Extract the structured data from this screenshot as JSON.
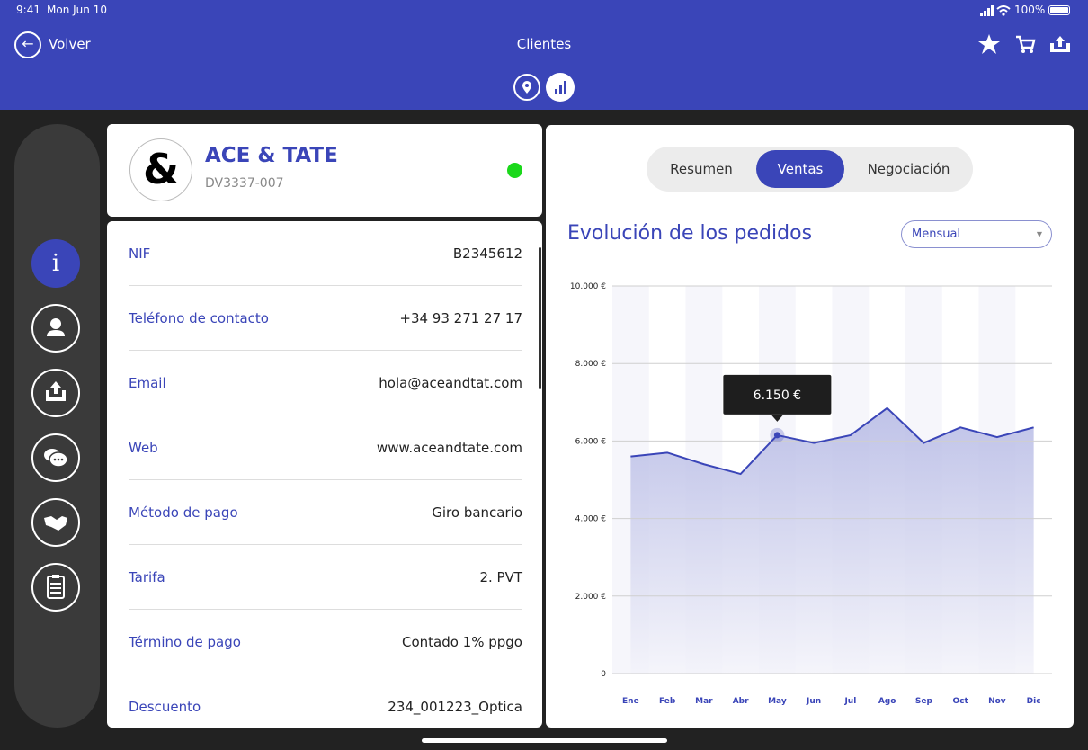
{
  "status": {
    "time": "9:41",
    "date": "Mon Jun 10",
    "battery": "100%"
  },
  "nav": {
    "back": "Volver",
    "title": "Clientes"
  },
  "client": {
    "logo": "&",
    "name": "ACE & TATE",
    "code": "DV3337-007"
  },
  "info": [
    {
      "label": "NIF",
      "value": "B2345612"
    },
    {
      "label": "Teléfono de contacto",
      "value": "+34 93 271 27 17"
    },
    {
      "label": "Email",
      "value": "hola@aceandtat.com"
    },
    {
      "label": "Web",
      "value": "www.aceandtate.com"
    },
    {
      "label": "Método de pago",
      "value": "Giro bancario"
    },
    {
      "label": "Tarifa",
      "value": "2. PVT"
    },
    {
      "label": "Término de pago",
      "value": "Contado 1% ppgo"
    },
    {
      "label": "Descuento",
      "value": "234_001223_Optica"
    }
  ],
  "tabs": [
    "Resumen",
    "Ventas",
    "Negociación"
  ],
  "chart_title": "Evolución de los pedidos",
  "period": "Mensual",
  "chart_data": {
    "type": "area",
    "categories": [
      "Ene",
      "Feb",
      "Mar",
      "Abr",
      "May",
      "Jun",
      "Jul",
      "Ago",
      "Sep",
      "Oct",
      "Nov",
      "Dic"
    ],
    "values": [
      5600,
      5700,
      5400,
      5150,
      6150,
      5950,
      6150,
      6850,
      5950,
      6350,
      6100,
      6350
    ],
    "value_labels": [
      null,
      null,
      null,
      null,
      "6.150 €",
      null,
      null,
      null,
      null,
      null,
      null,
      null
    ],
    "color": "#3a45b8",
    "ylim": [
      0,
      10000
    ],
    "yticks": [
      0,
      {
        "value": 2000,
        "label": "2.000 €"
      },
      {
        "value": 4000,
        "label": "4.000 €"
      },
      {
        "value": 6000,
        "label": "6.000 €"
      },
      {
        "value": 8000,
        "label": "8.000 €"
      },
      {
        "value": 10000,
        "label": "10.000 €"
      }
    ],
    "grid": true
  }
}
